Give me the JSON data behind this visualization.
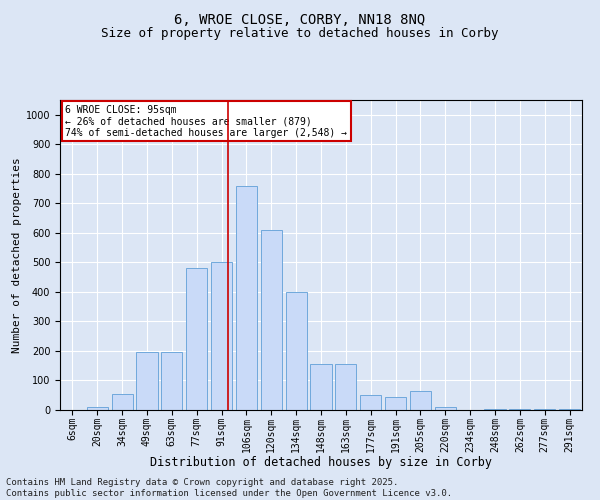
{
  "title1": "6, WROE CLOSE, CORBY, NN18 8NQ",
  "title2": "Size of property relative to detached houses in Corby",
  "xlabel": "Distribution of detached houses by size in Corby",
  "ylabel": "Number of detached properties",
  "categories": [
    "6sqm",
    "20sqm",
    "34sqm",
    "49sqm",
    "63sqm",
    "77sqm",
    "91sqm",
    "106sqm",
    "120sqm",
    "134sqm",
    "148sqm",
    "163sqm",
    "177sqm",
    "191sqm",
    "205sqm",
    "220sqm",
    "234sqm",
    "248sqm",
    "262sqm",
    "277sqm",
    "291sqm"
  ],
  "values": [
    0,
    10,
    55,
    195,
    195,
    480,
    500,
    760,
    610,
    400,
    155,
    155,
    50,
    45,
    65,
    10,
    0,
    5,
    5,
    5,
    5
  ],
  "bar_color": "#c9daf8",
  "bar_edge_color": "#6fa8dc",
  "background_color": "#dce6f5",
  "grid_color": "#ffffff",
  "vline_color": "#cc0000",
  "annotation_text": "6 WROE CLOSE: 95sqm\n← 26% of detached houses are smaller (879)\n74% of semi-detached houses are larger (2,548) →",
  "annotation_box_color": "#ffffff",
  "annotation_box_edge_color": "#cc0000",
  "footer": "Contains HM Land Registry data © Crown copyright and database right 2025.\nContains public sector information licensed under the Open Government Licence v3.0.",
  "ylim": [
    0,
    1050
  ],
  "yticks": [
    0,
    100,
    200,
    300,
    400,
    500,
    600,
    700,
    800,
    900,
    1000
  ],
  "title1_fontsize": 10,
  "title2_fontsize": 9,
  "xlabel_fontsize": 8.5,
  "ylabel_fontsize": 8,
  "tick_fontsize": 7,
  "annotation_fontsize": 7,
  "footer_fontsize": 6.5
}
